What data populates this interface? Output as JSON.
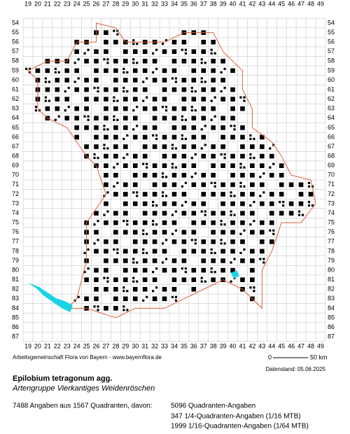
{
  "map": {
    "columns": [
      19,
      20,
      21,
      22,
      23,
      24,
      25,
      26,
      27,
      28,
      29,
      30,
      31,
      32,
      33,
      34,
      35,
      36,
      37,
      38,
      39,
      40,
      41,
      42,
      43,
      44,
      45,
      46,
      47,
      48,
      49
    ],
    "rows": [
      54,
      55,
      56,
      57,
      58,
      59,
      60,
      61,
      62,
      63,
      64,
      65,
      66,
      67,
      68,
      69,
      70,
      71,
      72,
      73,
      74,
      75,
      76,
      77,
      78,
      79,
      80,
      81,
      82,
      83,
      84,
      85,
      86,
      87
    ],
    "scale_start": "0",
    "scale_end": "50 km"
  },
  "footer": {
    "credit": "Arbeitsgemeinschaft Flora von Bayern - www.bayernflora.de",
    "date": "Datenstand: 05.06.2025",
    "species": "Epilobium tetragonum agg.",
    "group": "Artengruppe Vierkantiges Weidenröschen",
    "summary": "7488 Angaben aus 1567 Quadranten, davon:",
    "counts": [
      "5096 Quadranten-Angaben",
      "347 1/4-Quadranten-Angaben (1/16 MTB)",
      "1999 1/16-Quadranten-Angaben (1/64 MTB)"
    ]
  }
}
